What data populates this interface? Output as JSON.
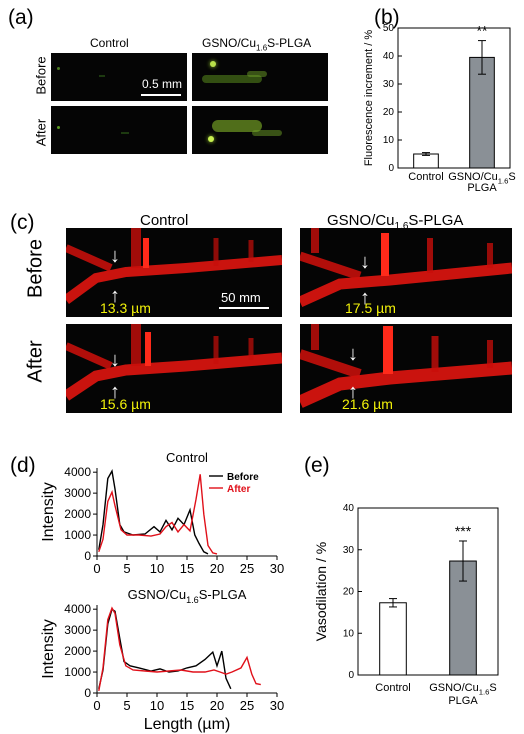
{
  "panel_labels": {
    "a": "(a)",
    "b": "(b)",
    "c": "(c)",
    "d": "(d)",
    "e": "(e)"
  },
  "panel_a": {
    "col_control": "Control",
    "col_treatment": "GSNO/Cu",
    "col_treatment_sub": "1.6",
    "col_treatment_tail": "S-PLGA",
    "row_before": "Before",
    "row_after": "After",
    "scale": "0.5 mm"
  },
  "panel_c": {
    "col_control": "Control",
    "col_treatment": "GSNO/Cu",
    "col_treatment_sub": "1.6",
    "col_treatment_tail": "S-PLGA",
    "row_before": "Before",
    "row_after": "After",
    "scale": "50 mm",
    "measurements": [
      "13.3 µm",
      "17.5 µm",
      "15.6 µm",
      "21.6 µm"
    ]
  },
  "chart_data": [
    {
      "id": "b",
      "type": "bar",
      "ylabel": "Fluorescence increment / %",
      "ylim": [
        0,
        50
      ],
      "yticks": [
        0,
        10,
        20,
        30,
        40,
        50
      ],
      "categories": [
        "Control",
        "GSNO/Cu1.6S PLGA"
      ],
      "category_lines": [
        [
          "Control"
        ],
        [
          "GSNO/Cu1.6S",
          "PLGA"
        ]
      ],
      "values": [
        5,
        39.5
      ],
      "errors": [
        0.5,
        6
      ],
      "colors": [
        "#ffffff",
        "#8a9096"
      ],
      "significance": [
        "",
        "**"
      ]
    },
    {
      "id": "d1",
      "type": "line",
      "title": "Control",
      "ylabel": "Intensity",
      "xlim": [
        0,
        30
      ],
      "ylim": [
        0,
        4200
      ],
      "xticks": [
        0,
        5,
        10,
        15,
        20,
        25,
        30
      ],
      "yticks": [
        0,
        1000,
        2000,
        3000,
        4000
      ],
      "legend_position": "top-right",
      "series": [
        {
          "name": "Before",
          "color": "#000000",
          "x": [
            0.3,
            1,
            1.8,
            2.5,
            3,
            3.8,
            4.5,
            6,
            8,
            9.5,
            10.5,
            11.5,
            12.5,
            13.5,
            14.5,
            15.5,
            16.3,
            17,
            17.8,
            18.5
          ],
          "y": [
            300,
            1500,
            3700,
            4050,
            3200,
            1500,
            1150,
            1000,
            1050,
            1400,
            1150,
            1700,
            1250,
            1800,
            1500,
            2200,
            1000,
            600,
            200,
            100
          ]
        },
        {
          "name": "After",
          "color": "#e0101a",
          "x": [
            0.3,
            1,
            1.8,
            2.5,
            3,
            4,
            5,
            7,
            9,
            10.5,
            11.5,
            12.5,
            13.5,
            14.5,
            15.5,
            16.5,
            17.2,
            17.8,
            18.5,
            19.3,
            20
          ],
          "y": [
            200,
            800,
            2600,
            3050,
            2400,
            1250,
            1000,
            1000,
            950,
            1050,
            1400,
            1600,
            1150,
            1500,
            1200,
            2700,
            3900,
            2000,
            500,
            150,
            100
          ]
        }
      ]
    },
    {
      "id": "d2",
      "type": "line",
      "title": "GSNO/Cu1.6S-PLGA",
      "xlabel": "Length (µm)",
      "ylabel": "Intensity",
      "xlim": [
        0,
        30
      ],
      "ylim": [
        0,
        4200
      ],
      "xticks": [
        0,
        5,
        10,
        15,
        20,
        25,
        30
      ],
      "yticks": [
        0,
        1000,
        2000,
        3000,
        4000
      ],
      "series": [
        {
          "name": "Before",
          "color": "#000000",
          "x": [
            0.3,
            1,
            1.8,
            2.5,
            3,
            3.8,
            4.5,
            5.5,
            7,
            9,
            10.5,
            12,
            13.5,
            15,
            16.5,
            18,
            19.3,
            20,
            20.8,
            21.5,
            22.3
          ],
          "y": [
            200,
            1100,
            3300,
            4000,
            3900,
            2600,
            1500,
            1300,
            1200,
            1050,
            1150,
            1000,
            1050,
            1200,
            1300,
            1600,
            1950,
            1300,
            2000,
            700,
            200
          ]
        },
        {
          "name": "After",
          "color": "#e0101a",
          "x": [
            0.3,
            1,
            1.8,
            2.5,
            3,
            3.8,
            4.8,
            6,
            8,
            10,
            12,
            14,
            16,
            18,
            19.5,
            20.5,
            21.5,
            22.5,
            24,
            25,
            25.8,
            26.5,
            27.3
          ],
          "y": [
            100,
            1200,
            3500,
            4050,
            3800,
            2300,
            1300,
            1100,
            1050,
            1000,
            1050,
            1100,
            1000,
            1000,
            1100,
            1000,
            900,
            1000,
            1200,
            1700,
            900,
            450,
            400
          ]
        }
      ]
    },
    {
      "id": "e",
      "type": "bar",
      "ylabel": "Vasodilation / %",
      "ylim": [
        0,
        40
      ],
      "yticks": [
        0,
        10,
        20,
        30,
        40
      ],
      "categories": [
        "Control",
        "GSNO/Cu1.6S PLGA"
      ],
      "category_lines": [
        [
          "Control"
        ],
        [
          "GSNO/Cu1.6S",
          "PLGA"
        ]
      ],
      "values": [
        17.3,
        27.3
      ],
      "errors": [
        1,
        4.8
      ],
      "colors": [
        "#ffffff",
        "#8a9096"
      ],
      "significance": [
        "",
        "***"
      ]
    }
  ]
}
